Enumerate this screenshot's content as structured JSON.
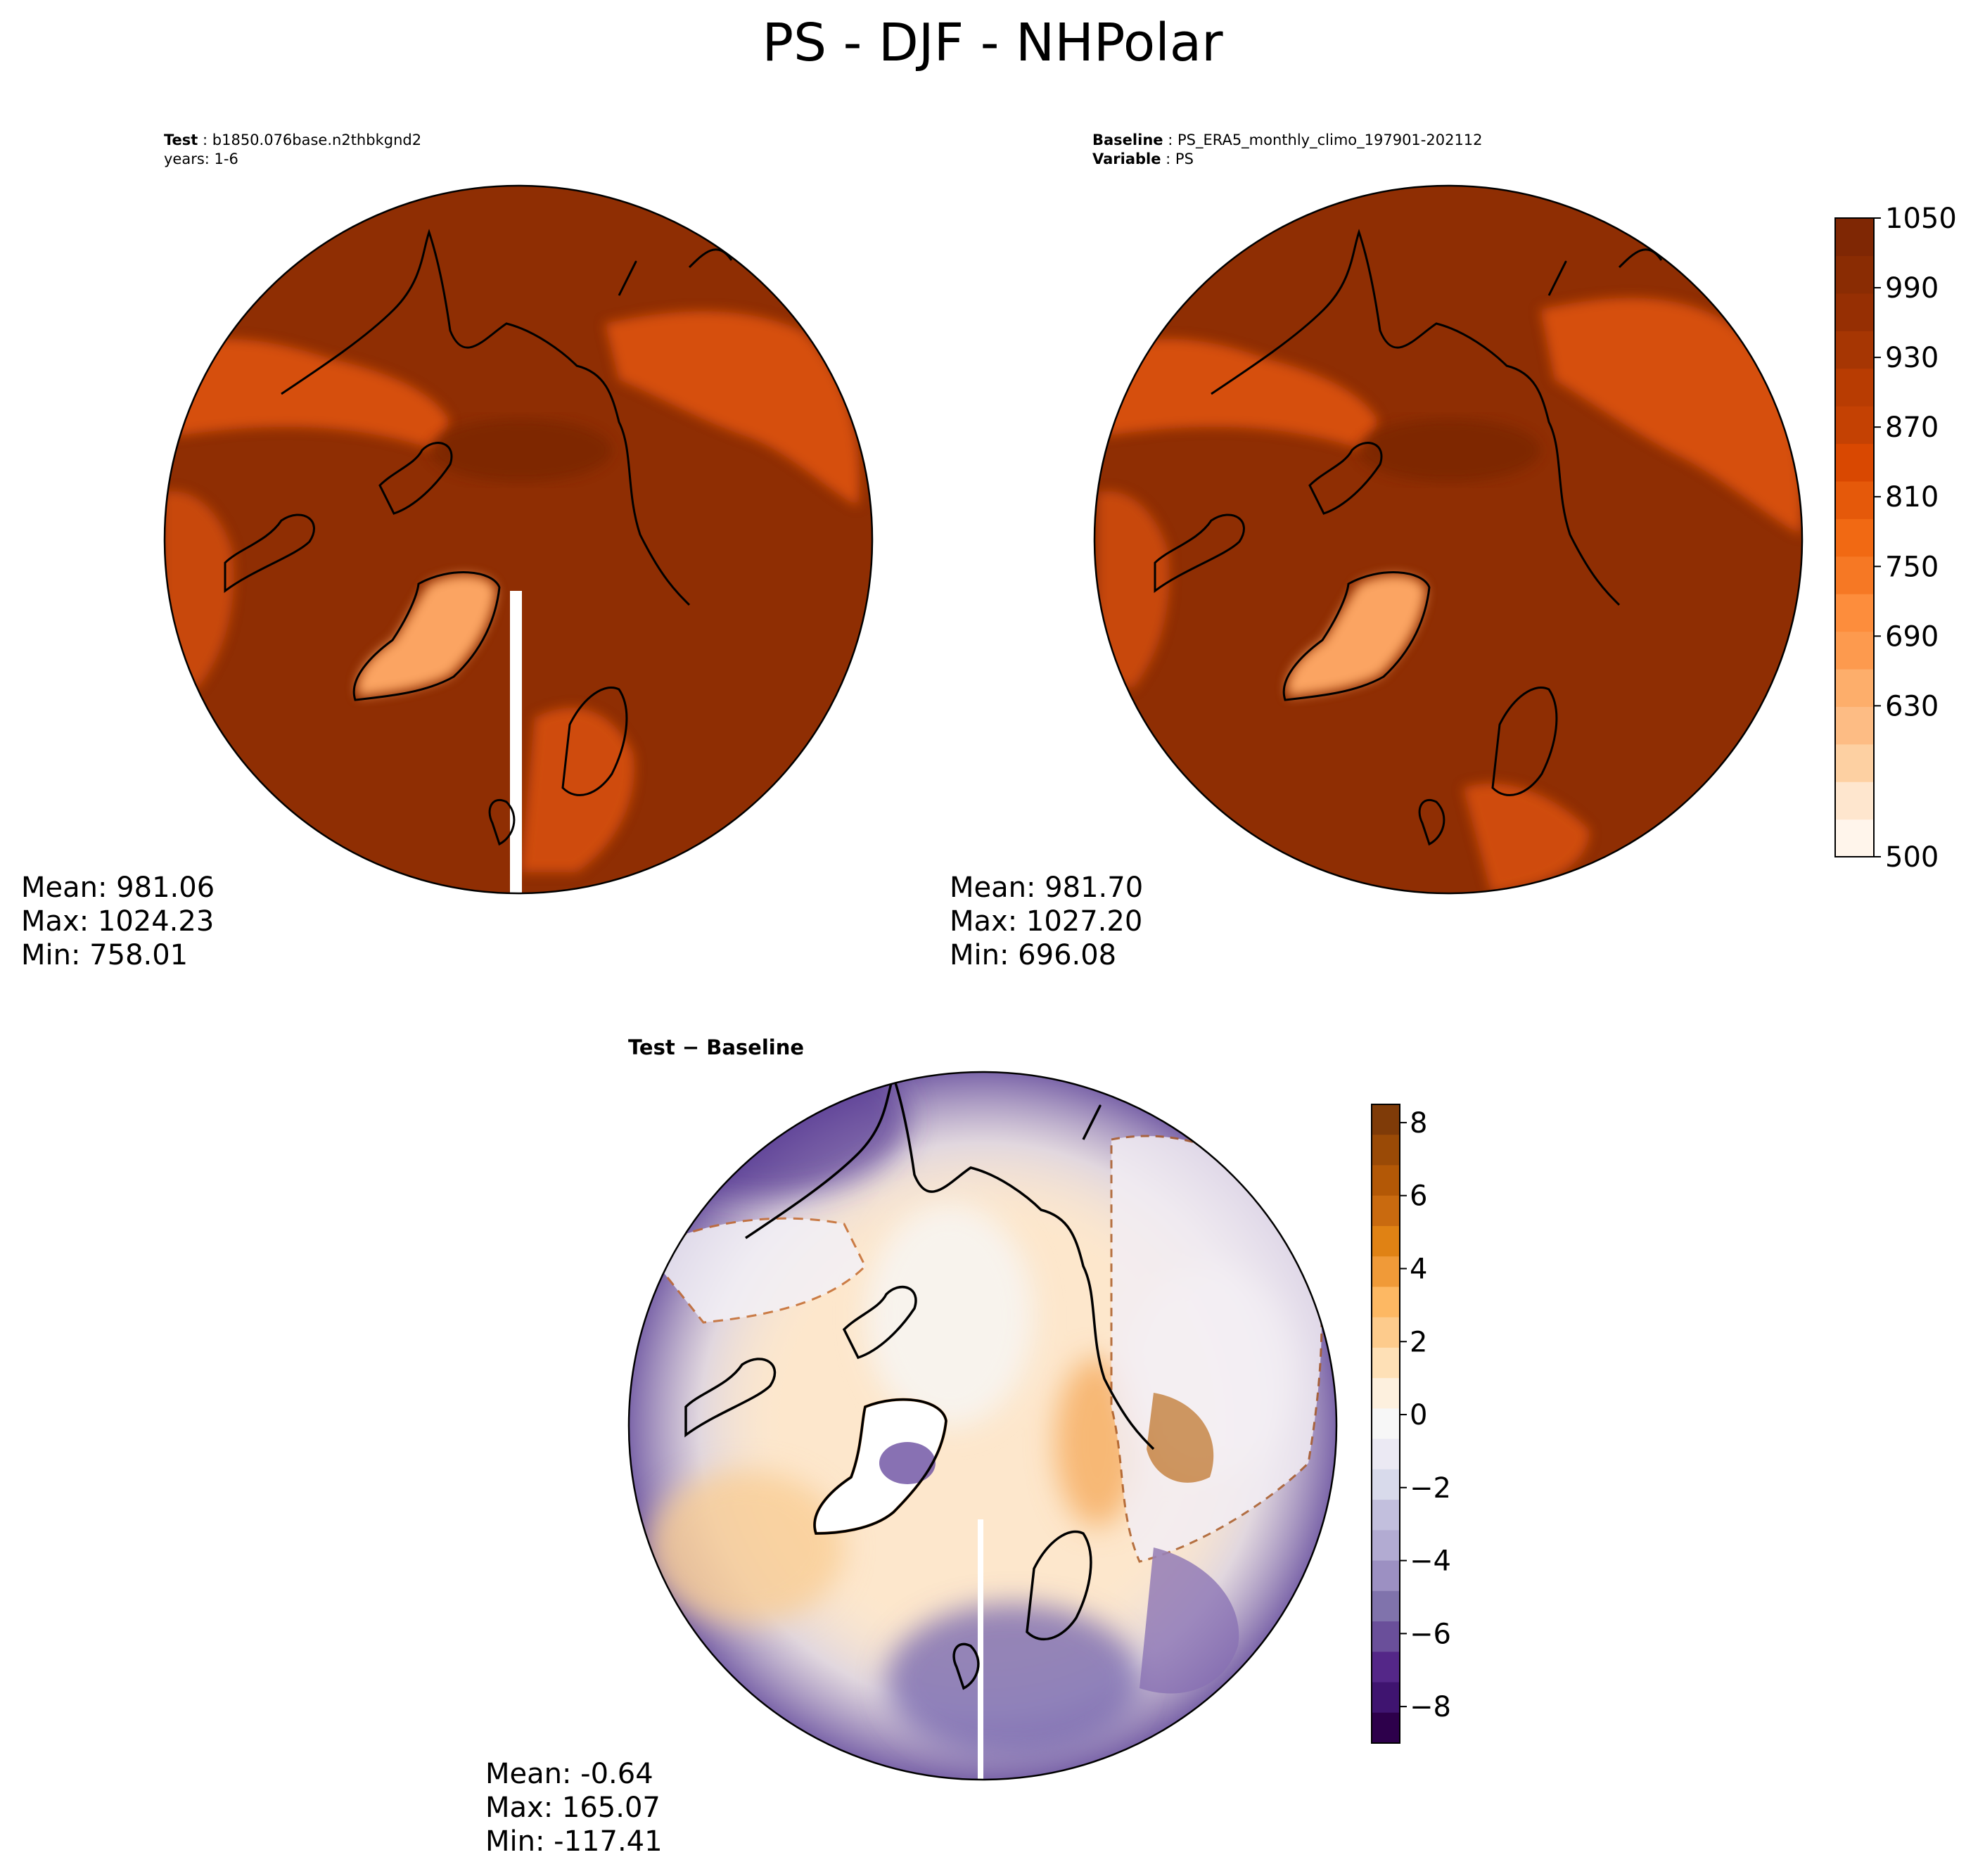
{
  "figure": {
    "title": "PS - DJF - NHPolar"
  },
  "test_panel": {
    "label_key": "Test",
    "label_value": "b1850.076base.n2thbkgnd2",
    "line2": "years: 1-6",
    "stats": {
      "mean": "Mean: 981.06",
      "max": "Max: 1024.23",
      "min": "Min: 758.01"
    }
  },
  "baseline_panel": {
    "label_key": "Baseline",
    "label_value": "PS_ERA5_monthly_climo_197901-202112",
    "variable_key": "Variable",
    "variable_value": "PS",
    "stats": {
      "mean": "Mean: 981.70",
      "max": "Max: 1027.20",
      "min": "Min: 696.08"
    }
  },
  "diff_panel": {
    "title_a": "Test",
    "title_sep": " − ",
    "title_b": "Baseline",
    "stats": {
      "mean": "Mean: -0.64",
      "max": "Max: 165.07",
      "min": "Min: -117.41"
    }
  },
  "colorbar_ps": {
    "range": [
      500,
      1050
    ],
    "ticks": [
      "1050",
      "990",
      "930",
      "870",
      "810",
      "750",
      "690",
      "630",
      "500"
    ],
    "colors": [
      "#fff5eb",
      "#fee6ce",
      "#fdd0a2",
      "#fdbc84",
      "#fdae6b",
      "#fd9a4e",
      "#fd8d3c",
      "#f67824",
      "#f16913",
      "#e5590a",
      "#d94801",
      "#c44103",
      "#b83c02",
      "#a63603",
      "#962f03",
      "#8a2c03",
      "#7f2704"
    ]
  },
  "colorbar_diff": {
    "range": [
      -9,
      8.5
    ],
    "ticks": [
      "8",
      "6",
      "4",
      "2",
      "0",
      "−2",
      "−4",
      "−6",
      "−8"
    ],
    "colors_top_to_bottom": [
      "#7f3b08",
      "#9a4a06",
      "#b35806",
      "#c96a0f",
      "#e08214",
      "#f09a38",
      "#fdb863",
      "#fdcb8c",
      "#fee0b6",
      "#fdf0de",
      "#f7f7f7",
      "#ebe9f3",
      "#d8daeb",
      "#c2bfdd",
      "#b2abd2",
      "#9c90c2",
      "#8073ac",
      "#6a4f9a",
      "#542788",
      "#3f1470",
      "#2d004b"
    ]
  },
  "map_colors": {
    "ocean_ps": "#8f2e03",
    "land_band_ps": "#d65010",
    "greenland_ps": "#fba462",
    "diff_background": "#fde7cc",
    "diff_purple": "#6c4ea0",
    "coastline": "#000000"
  }
}
